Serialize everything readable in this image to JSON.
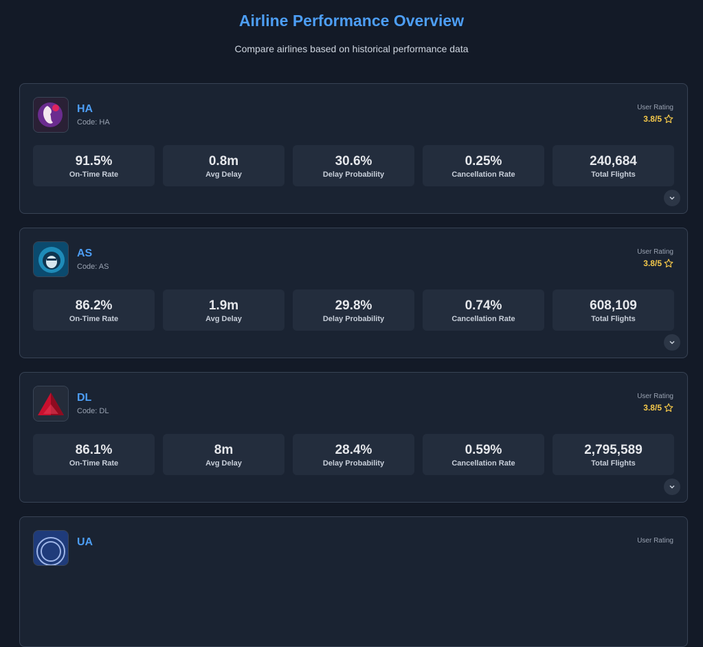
{
  "header": {
    "title": "Airline Performance Overview",
    "subtitle": "Compare airlines based on historical performance data"
  },
  "airlines": [
    {
      "name": "HA",
      "code": "Code: HA",
      "rating_label": "User Rating",
      "rating": "3.8/5",
      "metrics": [
        {
          "value": "91.5%",
          "label": "On-Time Rate"
        },
        {
          "value": "0.8m",
          "label": "Avg Delay"
        },
        {
          "value": "30.6%",
          "label": "Delay Probability"
        },
        {
          "value": "0.25%",
          "label": "Cancellation Rate"
        },
        {
          "value": "240,684",
          "label": "Total Flights"
        }
      ]
    },
    {
      "name": "AS",
      "code": "Code: AS",
      "rating_label": "User Rating",
      "rating": "3.8/5",
      "metrics": [
        {
          "value": "86.2%",
          "label": "On-Time Rate"
        },
        {
          "value": "1.9m",
          "label": "Avg Delay"
        },
        {
          "value": "29.8%",
          "label": "Delay Probability"
        },
        {
          "value": "0.74%",
          "label": "Cancellation Rate"
        },
        {
          "value": "608,109",
          "label": "Total Flights"
        }
      ]
    },
    {
      "name": "DL",
      "code": "Code: DL",
      "rating_label": "User Rating",
      "rating": "3.8/5",
      "metrics": [
        {
          "value": "86.1%",
          "label": "On-Time Rate"
        },
        {
          "value": "8m",
          "label": "Avg Delay"
        },
        {
          "value": "28.4%",
          "label": "Delay Probability"
        },
        {
          "value": "0.59%",
          "label": "Cancellation Rate"
        },
        {
          "value": "2,795,589",
          "label": "Total Flights"
        }
      ]
    },
    {
      "name": "UA",
      "rating_label": "User Rating"
    }
  ]
}
